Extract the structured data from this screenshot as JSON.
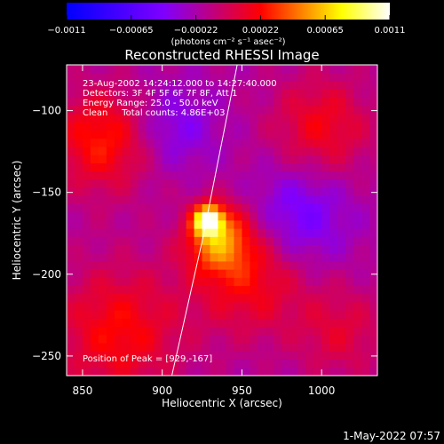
{
  "chart_data": {
    "type": "heatmap",
    "title": "Reconstructed RHESSI Image",
    "xlabel": "Heliocentric X (arcsec)",
    "ylabel": "Heliocentric Y (arcsec)",
    "xlim": [
      840,
      1035
    ],
    "ylim": [
      -262,
      -72
    ],
    "x_ticks": [
      "850",
      "900",
      "950",
      "1000"
    ],
    "y_ticks": [
      "-100",
      "-150",
      "-200",
      "-250"
    ],
    "colorbar": {
      "min": -0.0011,
      "max": 0.0011,
      "tick_labels": [
        "-0.0011",
        "-0.00065",
        "-0.00022",
        "0.00022",
        "0.00065",
        "0.0011"
      ],
      "unit_label": "(photons cm⁻² s⁻¹ asec⁻²)",
      "colors": [
        "#0000ff",
        "#7f00ff",
        "#ff0000",
        "#ffff00",
        "#ffffff"
      ]
    },
    "annotations": [
      "23-Aug-2002 14:24:12.000 to 14:27:40.000",
      "Detectors: 3F 4F 5F 6F 7F 8F, Att 1",
      "Energy Range: 25.0 - 50.0 keV",
      "Clean     Total counts: 4.86E+03"
    ],
    "peak_text": "Position of Peak = [929,-167]",
    "peak": [
      929,
      -167
    ],
    "limb_points": [
      [
        947,
        -72
      ],
      [
        925,
        -180
      ],
      [
        906,
        -262
      ]
    ],
    "sources": [
      {
        "x": 929,
        "y": -167,
        "peak": 0.0011,
        "sigma": 6
      },
      {
        "x": 935,
        "y": -178,
        "peak": 0.0006,
        "sigma": 14
      },
      {
        "x": 955,
        "y": -200,
        "peak": 0.0004,
        "sigma": 25
      },
      {
        "x": 862,
        "y": -118,
        "peak": 0.00045,
        "sigma": 22
      },
      {
        "x": 1000,
        "y": -110,
        "peak": 0.00035,
        "sigma": 22
      },
      {
        "x": 872,
        "y": -235,
        "peak": 0.0004,
        "sigma": 28
      },
      {
        "x": 1012,
        "y": -235,
        "peak": 0.00025,
        "sigma": 20
      },
      {
        "x": 985,
        "y": -165,
        "peak": -0.00035,
        "sigma": 22
      },
      {
        "x": 908,
        "y": -110,
        "peak": -0.00025,
        "sigma": 18
      }
    ]
  },
  "footer_timestamp": "1-May-2022 07:57"
}
